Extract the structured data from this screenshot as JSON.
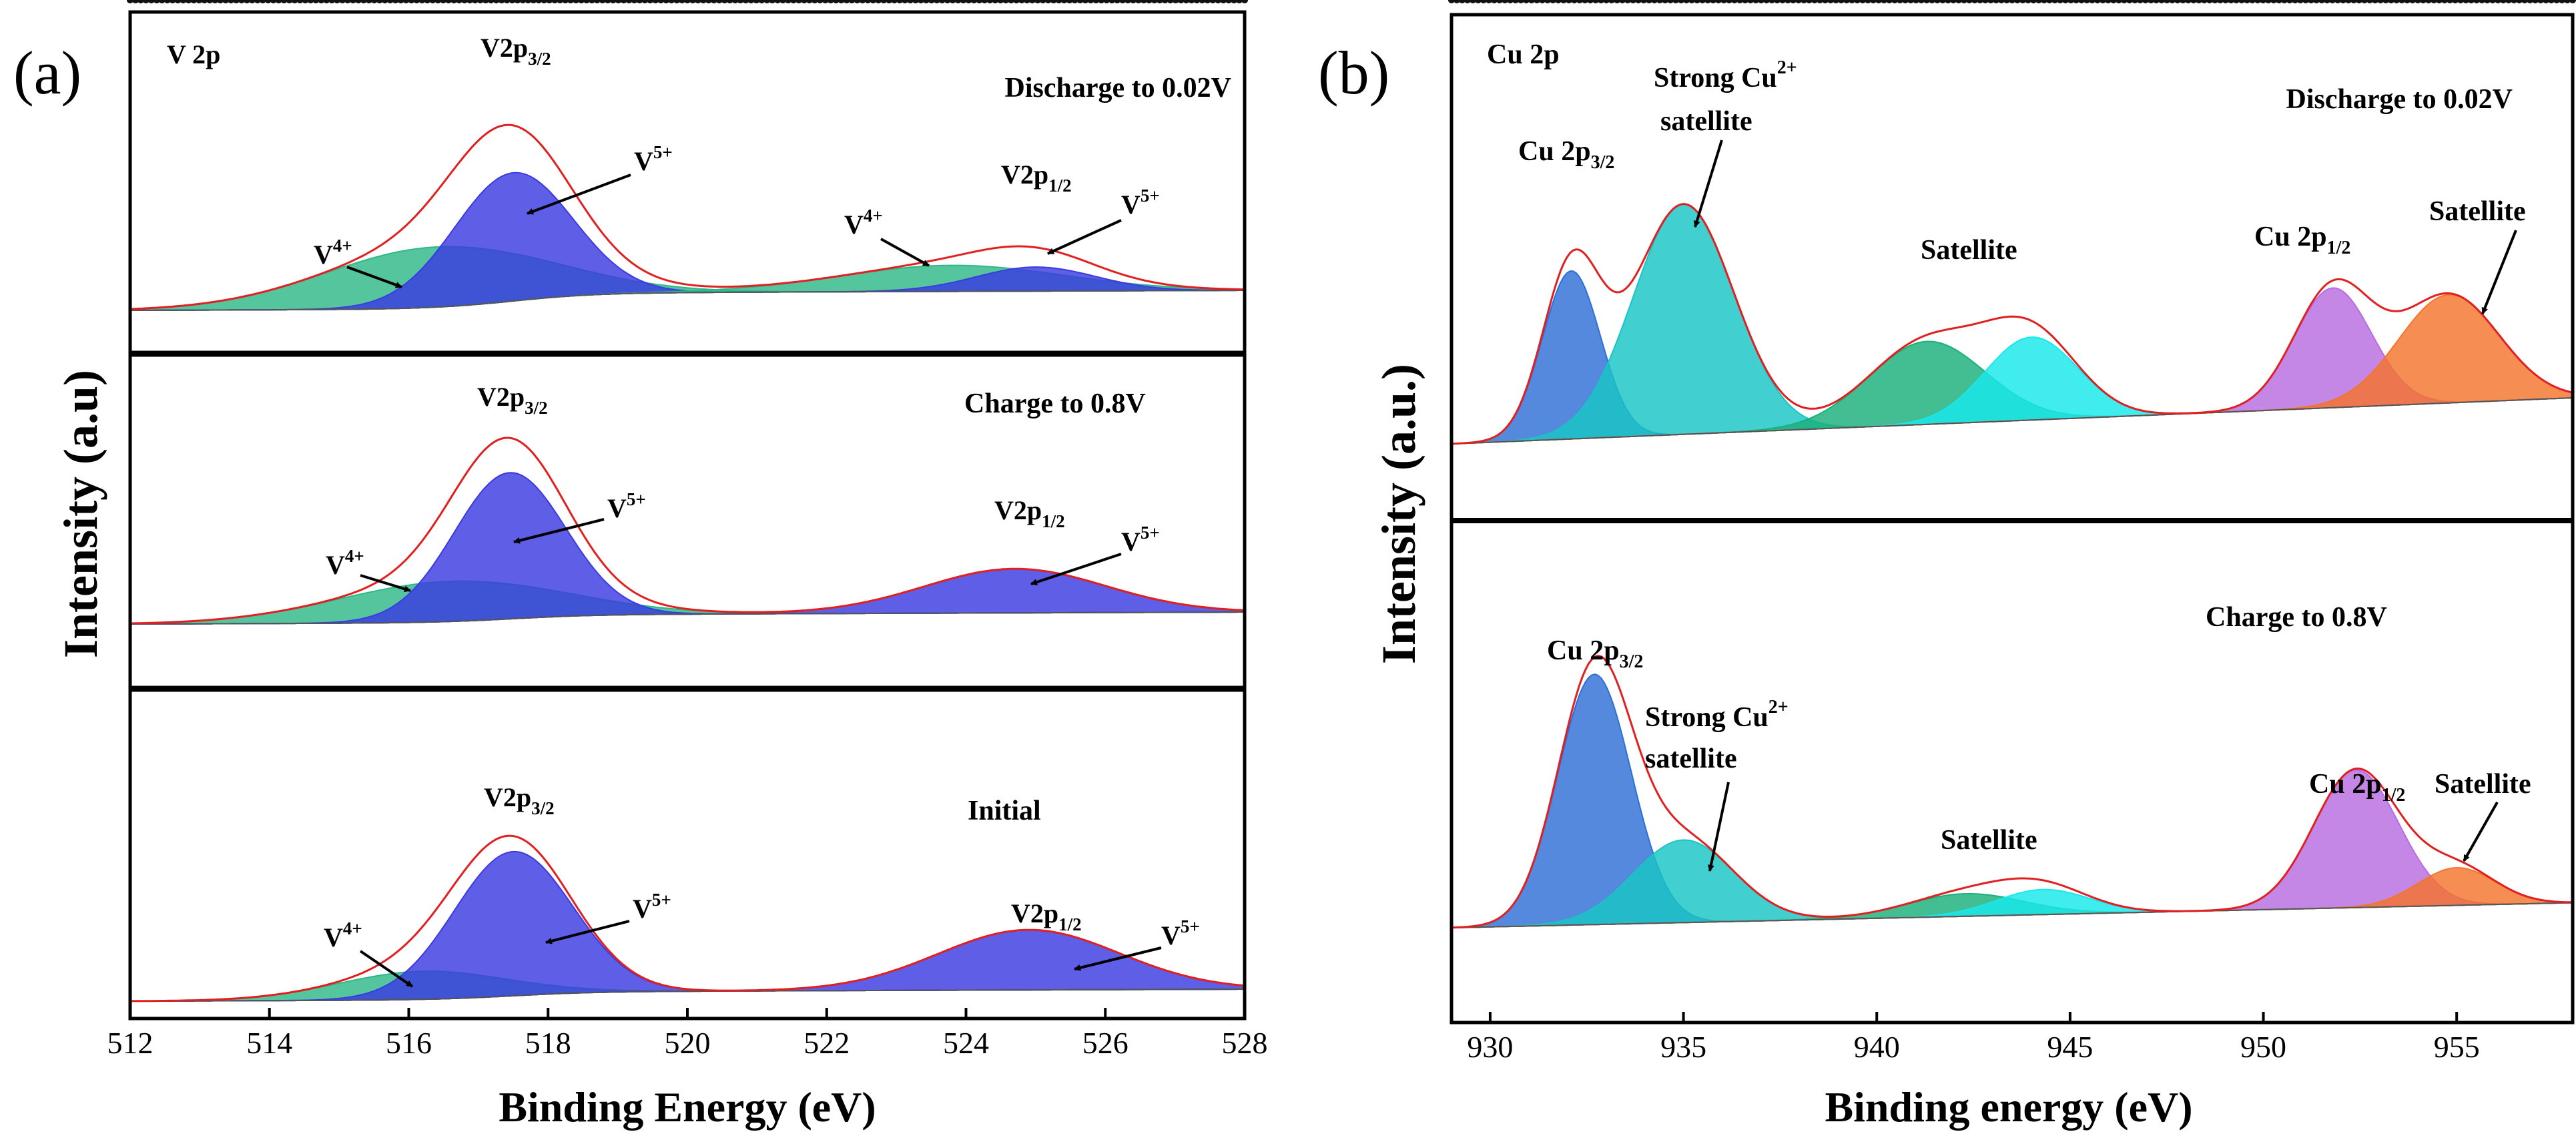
{
  "chart_data": [
    {
      "type": "line",
      "panel_label": "(a)",
      "element_label": "V 2p",
      "xlabel": "Binding Energy (eV)",
      "ylabel": "Intensity (a.u)",
      "xlim": [
        512,
        528
      ],
      "xticks": [
        512,
        514,
        516,
        518,
        520,
        522,
        524,
        526,
        528
      ],
      "axis_reversed": false,
      "subplots": [
        {
          "condition": "Discharge to 0.02V",
          "peaks": [
            {
              "label": "V4+ (2p3/2)",
              "center": 516.4,
              "height": 0.3,
              "width": 1.6,
              "color": "#2fb887"
            },
            {
              "label": "V5+ (2p3/2)",
              "center": 517.5,
              "height": 0.64,
              "width": 0.85,
              "color": "#3a3ae0"
            },
            {
              "label": "V4+ (2p1/2)",
              "center": 523.8,
              "height": 0.13,
              "width": 1.6,
              "color": "#2fb887"
            },
            {
              "label": "V5+ (2p1/2)",
              "center": 525.0,
              "height": 0.12,
              "width": 0.85,
              "color": "#3a3ae0"
            }
          ],
          "annotations": [
            "V2p3/2",
            "V5+",
            "V4+",
            "V4+",
            "V2p1/2",
            "V5+"
          ]
        },
        {
          "condition": "Charge to 0.8V",
          "peaks": [
            {
              "label": "V4+ (2p3/2)",
              "center": 516.6,
              "height": 0.2,
              "width": 1.6,
              "color": "#2fb887"
            },
            {
              "label": "V5+ (2p3/2)",
              "center": 517.45,
              "height": 0.73,
              "width": 0.8,
              "color": "#3a3ae0"
            },
            {
              "label": "V5+ (2p1/2)",
              "center": 524.7,
              "height": 0.22,
              "width": 1.3,
              "color": "#3a3ae0"
            }
          ],
          "annotations": [
            "V2p3/2",
            "V5+",
            "V4+",
            "V2p1/2",
            "V5+"
          ]
        },
        {
          "condition": "Initial",
          "peaks": [
            {
              "label": "V4+ (2p3/2)",
              "center": 516.2,
              "height": 0.14,
              "width": 1.2,
              "color": "#2fb887"
            },
            {
              "label": "V5+ (2p3/2)",
              "center": 517.5,
              "height": 0.72,
              "width": 0.85,
              "color": "#3a3ae0"
            },
            {
              "label": "V5+ (2p1/2)",
              "center": 524.9,
              "height": 0.3,
              "width": 1.3,
              "color": "#3a3ae0"
            }
          ],
          "annotations": [
            "V2p3/2",
            "V5+",
            "V4+",
            "V2p1/2",
            "V5+"
          ]
        }
      ]
    },
    {
      "type": "line",
      "panel_label": "(b)",
      "element_label": "Cu 2p",
      "xlabel": "Binding energy (eV)",
      "ylabel": "Intensity (a.u.)",
      "xlim": [
        929,
        958
      ],
      "xticks": [
        930,
        935,
        940,
        945,
        950,
        955
      ],
      "subplots": [
        {
          "condition": "Discharge to 0.02V",
          "peaks": [
            {
              "label": "Cu 2p3/2",
              "center": 932.1,
              "height": 0.73,
              "width": 0.75,
              "color": "#2e6fd6"
            },
            {
              "label": "Strong Cu2+ satellite",
              "center": 935.0,
              "height": 1.0,
              "width": 1.3,
              "color": "#18c4c4"
            },
            {
              "label": "Satellite",
              "center": 941.3,
              "height": 0.36,
              "width": 1.5,
              "color": "#19b07a"
            },
            {
              "label": "Satellite",
              "center": 944.0,
              "height": 0.36,
              "width": 1.2,
              "color": "#17e8ec"
            },
            {
              "label": "Cu 2p1/2",
              "center": 951.8,
              "height": 0.52,
              "width": 1.0,
              "color": "#b86ce0"
            },
            {
              "label": "Satellite",
              "center": 954.8,
              "height": 0.47,
              "width": 1.3,
              "color": "#f4742c"
            }
          ],
          "annotations": [
            "Cu 2p3/2",
            "Strong Cu2+",
            "satellite",
            "Satellite",
            "Cu 2p1/2",
            "Satellite"
          ]
        },
        {
          "condition": "Charge to 0.8V",
          "peaks": [
            {
              "label": "Cu 2p3/2",
              "center": 932.7,
              "height": 1.0,
              "width": 0.95,
              "color": "#2e6fd6"
            },
            {
              "label": "Strong Cu2+ satellite",
              "center": 935.0,
              "height": 0.33,
              "width": 1.3,
              "color": "#18c4c4"
            },
            {
              "label": "Satellite",
              "center": 942.3,
              "height": 0.09,
              "width": 1.5,
              "color": "#19b07a"
            },
            {
              "label": "Satellite",
              "center": 944.3,
              "height": 0.1,
              "width": 1.2,
              "color": "#17e8ec"
            },
            {
              "label": "Cu 2p1/2",
              "center": 952.4,
              "height": 0.55,
              "width": 1.1,
              "color": "#b86ce0"
            },
            {
              "label": "Satellite",
              "center": 955.0,
              "height": 0.15,
              "width": 1.0,
              "color": "#f4742c"
            }
          ],
          "annotations": [
            "Cu 2p3/2",
            "Strong Cu2+",
            "satellite",
            "Satellite",
            "Cu 2p1/2",
            "Satellite"
          ]
        }
      ]
    }
  ],
  "panel_a": {
    "label": "(a)",
    "element": "V 2p",
    "ylabel": "Intensity (a.u)",
    "xlabel": "Binding Energy (eV)",
    "top": {
      "condition": "Discharge to 0.02V",
      "v2p32_main": "V2p",
      "v2p32_sub": "3/2",
      "v5_a": "V",
      "v5_a_sup": "5+",
      "v4_a": "V",
      "v4_a_sup": "4+",
      "v4_b": "V",
      "v4_b_sup": "4+",
      "v2p12_main": "V2p",
      "v2p12_sub": "1/2",
      "v5_b": "V",
      "v5_b_sup": "5+"
    },
    "mid": {
      "condition": "Charge to 0.8V",
      "v2p32_main": "V2p",
      "v2p32_sub": "3/2",
      "v5_a": "V",
      "v5_a_sup": "5+",
      "v4_a": "V",
      "v4_a_sup": "4+",
      "v2p12_main": "V2p",
      "v2p12_sub": "1/2",
      "v5_b": "V",
      "v5_b_sup": "5+"
    },
    "bot": {
      "condition": "Initial",
      "v2p32_main": "V2p",
      "v2p32_sub": "3/2",
      "v5_a": "V",
      "v5_a_sup": "5+",
      "v4_a": "V",
      "v4_a_sup": "4+",
      "v2p12_main": "V2p",
      "v2p12_sub": "1/2",
      "v5_b": "V",
      "v5_b_sup": "5+"
    }
  },
  "panel_b": {
    "label": "(b)",
    "element": "Cu 2p",
    "ylabel": "Intensity (a.u.)",
    "xlabel": "Binding energy (eV)",
    "top": {
      "condition": "Discharge to 0.02V",
      "cu32_main": "Cu 2p",
      "cu32_sub": "3/2",
      "strong_main": "Strong Cu",
      "strong_sup": "2+",
      "strong_line2": "satellite",
      "sat_mid": "Satellite",
      "cu12_main": "Cu 2p",
      "cu12_sub": "1/2",
      "sat_right": "Satellite"
    },
    "bot": {
      "condition": "Charge to 0.8V",
      "cu32_main": "Cu 2p",
      "cu32_sub": "3/2",
      "strong_main": "Strong Cu",
      "strong_sup": "2+",
      "strong_line2": "satellite",
      "sat_mid": "Satellite",
      "cu12_main": "Cu 2p",
      "cu12_sub": "1/2",
      "sat_right": "Satellite"
    }
  }
}
